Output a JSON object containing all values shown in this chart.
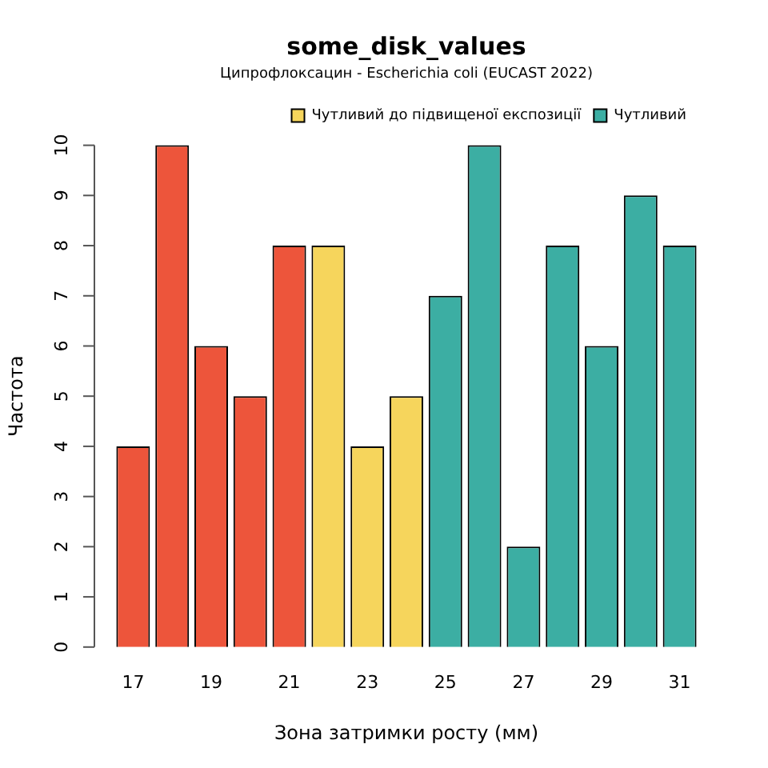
{
  "chart_data": {
    "type": "bar",
    "title": "some_disk_values",
    "subtitle": "Ципрофлоксацин - Escherichia coli (EUCAST 2022)",
    "xlabel": "Зона затримки росту (мм)",
    "ylabel": "Частота",
    "categories": [
      "17",
      null,
      "19",
      null,
      "21",
      null,
      "23",
      null,
      "25",
      null,
      "27",
      null,
      "29",
      null,
      "31"
    ],
    "series": [
      {
        "color": "#ed553b",
        "values": [
          4,
          10,
          6,
          5,
          8,
          null,
          null,
          null,
          null,
          null,
          null,
          null,
          null,
          null,
          null
        ]
      },
      {
        "name": "Чутливий до підвищеної експозиції",
        "color": "#f6d55c",
        "values": [
          null,
          null,
          null,
          null,
          null,
          8,
          4,
          5,
          null,
          null,
          null,
          null,
          null,
          null,
          null
        ]
      },
      {
        "name": "Чутливий",
        "color": "#3caea3",
        "values": [
          null,
          null,
          null,
          null,
          null,
          null,
          null,
          null,
          7,
          10,
          2,
          8,
          6,
          9,
          8
        ]
      }
    ],
    "ylim": [
      0,
      10
    ],
    "yticks": [
      0,
      1,
      2,
      3,
      4,
      5,
      6,
      7,
      8,
      9,
      10
    ],
    "grid": false,
    "legend": "top right"
  }
}
